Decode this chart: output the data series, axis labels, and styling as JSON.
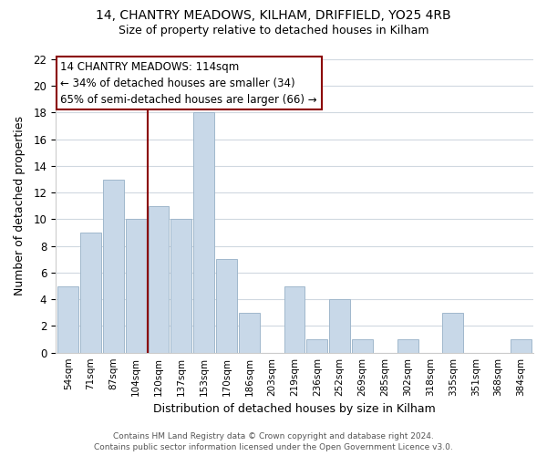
{
  "title_line1": "14, CHANTRY MEADOWS, KILHAM, DRIFFIELD, YO25 4RB",
  "title_line2": "Size of property relative to detached houses in Kilham",
  "xlabel": "Distribution of detached houses by size in Kilham",
  "ylabel": "Number of detached properties",
  "footer_line1": "Contains HM Land Registry data © Crown copyright and database right 2024.",
  "footer_line2": "Contains public sector information licensed under the Open Government Licence v3.0.",
  "categories": [
    "54sqm",
    "71sqm",
    "87sqm",
    "104sqm",
    "120sqm",
    "137sqm",
    "153sqm",
    "170sqm",
    "186sqm",
    "203sqm",
    "219sqm",
    "236sqm",
    "252sqm",
    "269sqm",
    "285sqm",
    "302sqm",
    "318sqm",
    "335sqm",
    "351sqm",
    "368sqm",
    "384sqm"
  ],
  "values": [
    5,
    9,
    13,
    10,
    11,
    10,
    18,
    7,
    3,
    0,
    5,
    1,
    4,
    1,
    0,
    1,
    0,
    3,
    0,
    0,
    1
  ],
  "bar_color": "#c8d8e8",
  "bar_edgecolor": "#a0b8cc",
  "vline_color": "#8b0000",
  "vline_index": 3.5,
  "annotation_line1": "14 CHANTRY MEADOWS: 114sqm",
  "annotation_line2": "← 34% of detached houses are smaller (34)",
  "annotation_line3": "65% of semi-detached houses are larger (66) →",
  "annotation_fontsize": 8.5,
  "ylim": [
    0,
    22
  ],
  "yticks": [
    0,
    2,
    4,
    6,
    8,
    10,
    12,
    14,
    16,
    18,
    20,
    22
  ],
  "background_color": "#ffffff",
  "grid_color": "#d0d8e0"
}
